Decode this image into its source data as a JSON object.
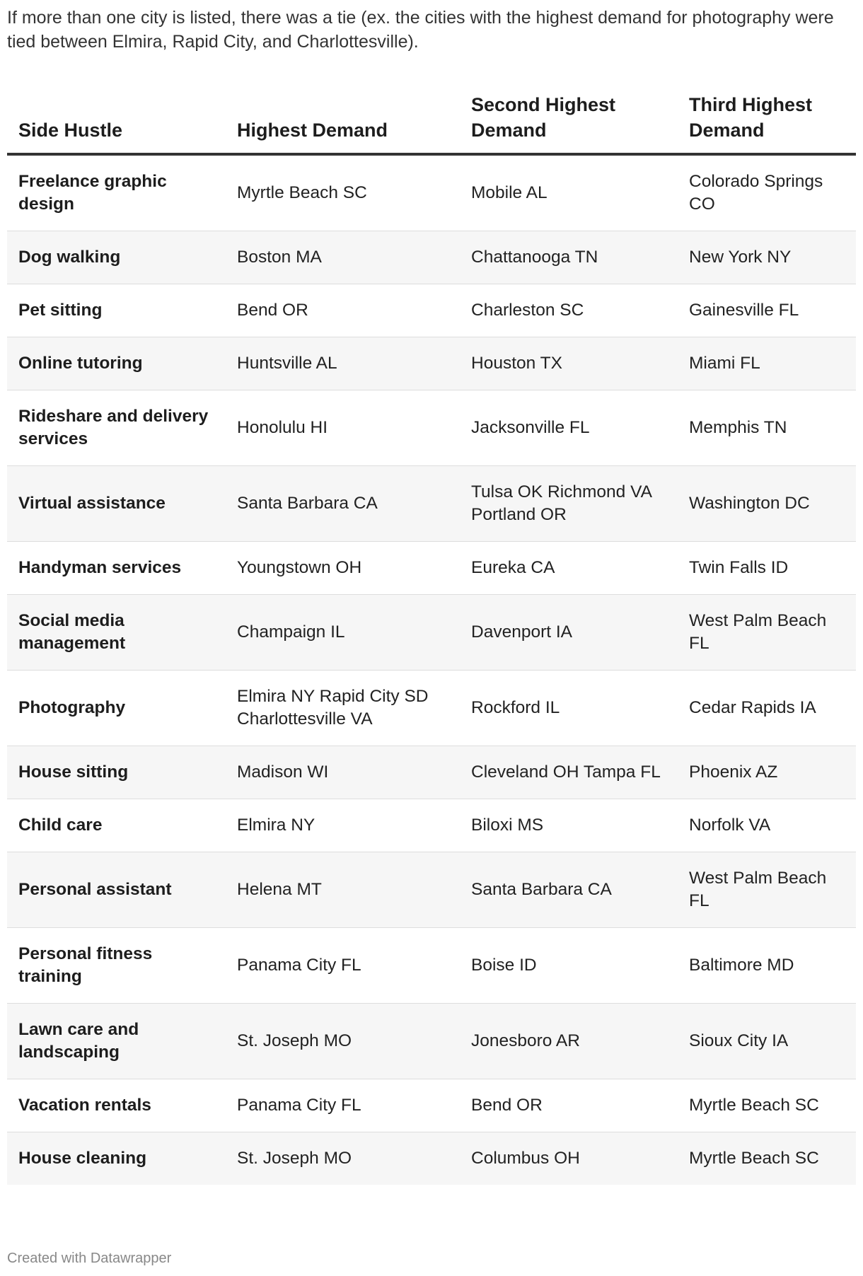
{
  "intro": "If more than one city is listed, there was a tie (ex. the cities with the highest demand for photography were tied between Elmira, Rapid City, and Charlottesville).",
  "table": {
    "headers": [
      "Side Hustle",
      "Highest Demand",
      "Second Highest Demand",
      "Third Highest Demand"
    ],
    "rows": [
      [
        "Freelance graphic design",
        "Myrtle Beach SC",
        "Mobile AL",
        "Colorado Springs CO"
      ],
      [
        "Dog walking",
        "Boston MA",
        "Chattanooga TN",
        "New York NY"
      ],
      [
        "Pet sitting",
        "Bend OR",
        "Charleston SC",
        "Gainesville FL"
      ],
      [
        "Online tutoring",
        "Huntsville AL",
        "Houston TX",
        "Miami FL"
      ],
      [
        "Rideshare and delivery services",
        "Honolulu HI",
        "Jacksonville FL",
        "Memphis TN"
      ],
      [
        "Virtual assistance",
        "Santa Barbara CA",
        "Tulsa OK Richmond VA Portland OR",
        "Washington DC"
      ],
      [
        "Handyman services",
        "Youngstown OH",
        "Eureka CA",
        "Twin Falls ID"
      ],
      [
        "Social media management",
        "Champaign IL",
        "Davenport IA",
        "West Palm Beach FL"
      ],
      [
        "Photography",
        "Elmira NY Rapid City SD Charlottesville VA",
        "Rockford IL",
        "Cedar Rapids IA"
      ],
      [
        "House sitting",
        "Madison WI",
        "Cleveland OH Tampa FL",
        "Phoenix AZ"
      ],
      [
        "Child care",
        "Elmira NY",
        "Biloxi MS",
        "Norfolk VA"
      ],
      [
        "Personal assistant",
        "Helena MT",
        "Santa Barbara CA",
        "West Palm Beach FL"
      ],
      [
        "Personal fitness training",
        "Panama City FL",
        "Boise ID",
        "Baltimore MD"
      ],
      [
        "Lawn care and landscaping",
        "St. Joseph MO",
        "Jonesboro AR",
        "Sioux City IA"
      ],
      [
        "Vacation rentals",
        "Panama City FL",
        "Bend OR",
        "Myrtle Beach SC"
      ],
      [
        "House cleaning",
        "St. Joseph MO",
        "Columbus OH",
        "Myrtle Beach SC"
      ]
    ]
  },
  "footer": "Created with Datawrapper"
}
